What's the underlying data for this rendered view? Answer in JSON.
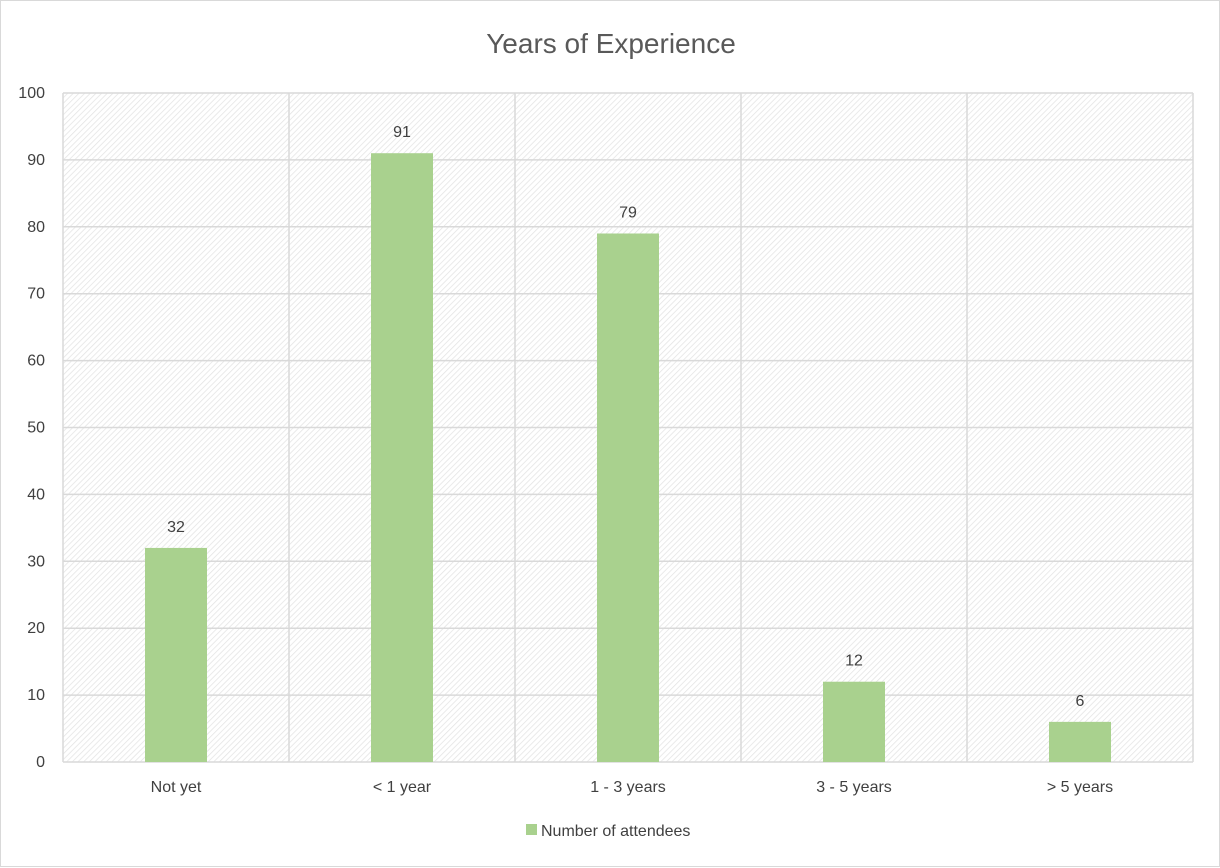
{
  "chart_data": {
    "type": "bar",
    "title": "Years of Experience",
    "categories": [
      "Not yet",
      "< 1 year",
      "1 - 3 years",
      "3 - 5 years",
      "> 5 years"
    ],
    "series": [
      {
        "name": "Number of attendees",
        "values": [
          32,
          91,
          79,
          12,
          6
        ],
        "color": "#a9d18e"
      }
    ],
    "xlabel": "",
    "ylabel": "",
    "ylim": [
      0,
      100
    ],
    "yticks": [
      "0",
      "10",
      "20",
      "30",
      "40",
      "50",
      "60",
      "70",
      "80",
      "90",
      "100"
    ],
    "data_labels": [
      "32",
      "91",
      "79",
      "12",
      "6"
    ],
    "grid": true,
    "legend_position": "bottom",
    "plot_background": "hatched-light-gray"
  }
}
